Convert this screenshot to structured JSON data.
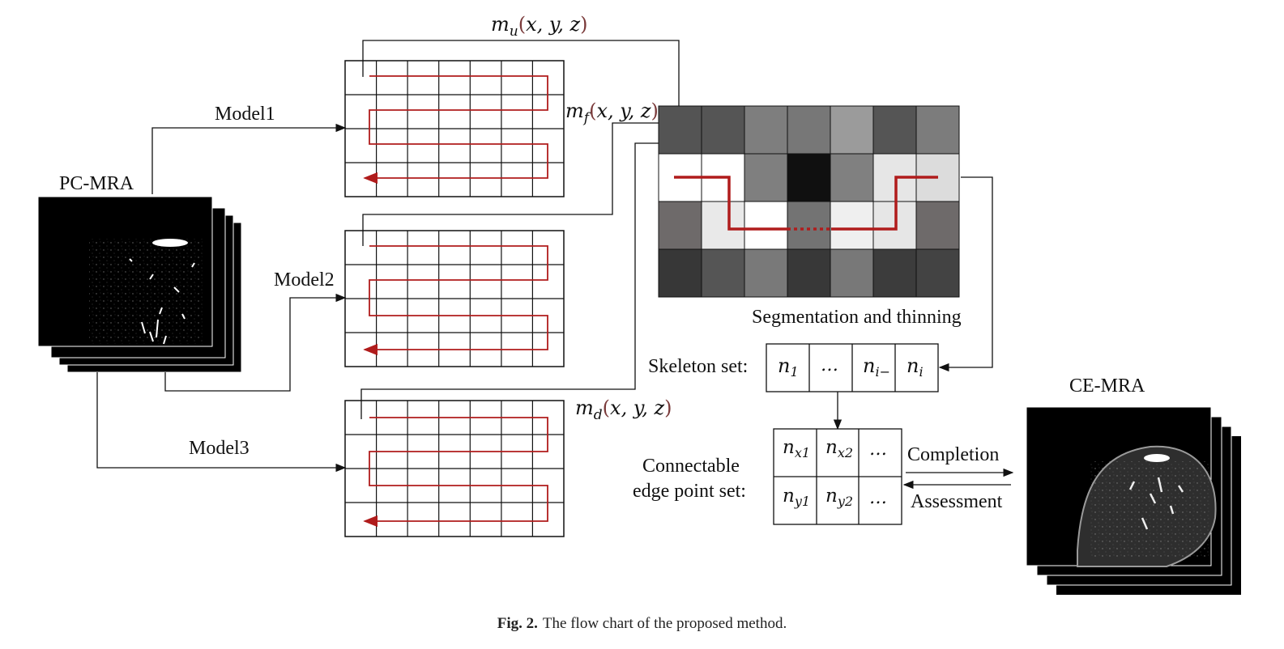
{
  "labels": {
    "pc_mra": "PC-MRA",
    "ce_mra": "CE-MRA",
    "model1": "Model1",
    "model2": "Model2",
    "model3": "Model3",
    "seg": "Segmentation and thinning",
    "skeleton": "Skeleton set:",
    "connectable_1": "Connectable",
    "connectable_2": "edge point set:",
    "completion": "Completion",
    "assessment": "Assessment"
  },
  "math": {
    "mu_base": "m",
    "mu_sub": "u",
    "mf_base": "m",
    "mf_sub": "f",
    "md_base": "m",
    "md_sub": "d",
    "paren_open": "(",
    "paren_close": ")",
    "args": "x, y, z"
  },
  "skeleton_cells": {
    "c1": {
      "base": "n",
      "sub": "1"
    },
    "c2": {
      "base": "…",
      "sub": ""
    },
    "c3": {
      "base": "n",
      "sub": "i−"
    },
    "c4": {
      "base": "n",
      "sub": "i"
    }
  },
  "edge_cells": {
    "r1c1": {
      "base": "n",
      "sub": "x1"
    },
    "r1c2": {
      "base": "n",
      "sub": "x2"
    },
    "r1c3": {
      "base": "…",
      "sub": ""
    },
    "r2c1": {
      "base": "n",
      "sub": "y1"
    },
    "r2c2": {
      "base": "n",
      "sub": "y2"
    },
    "r2c3": {
      "base": "…",
      "sub": ""
    }
  },
  "caption": {
    "prefix": "Fig. 2.",
    "text": "The flow chart of the proposed method."
  },
  "colors": {
    "red_path": "#b01c1c",
    "line": "#111111"
  },
  "seg_grid_shades": [
    [
      "#545454",
      "#555555",
      "#7e7e7e",
      "#777777",
      "#9b9b9b",
      "#555555",
      "#7c7c7c"
    ],
    [
      "#ffffff",
      "#ffffff",
      "#7f7f7f",
      "#101010",
      "#808080",
      "#e6e6e6",
      "#dcdcdc"
    ],
    [
      "#6e6a6a",
      "#e9e9e9",
      "#ffffff",
      "#737373",
      "#efefef",
      "#e6e6e6",
      "#6e6a6a"
    ],
    [
      "#373737",
      "#555555",
      "#797979",
      "#383838",
      "#787878",
      "#3c3c3c",
      "#434343"
    ]
  ]
}
